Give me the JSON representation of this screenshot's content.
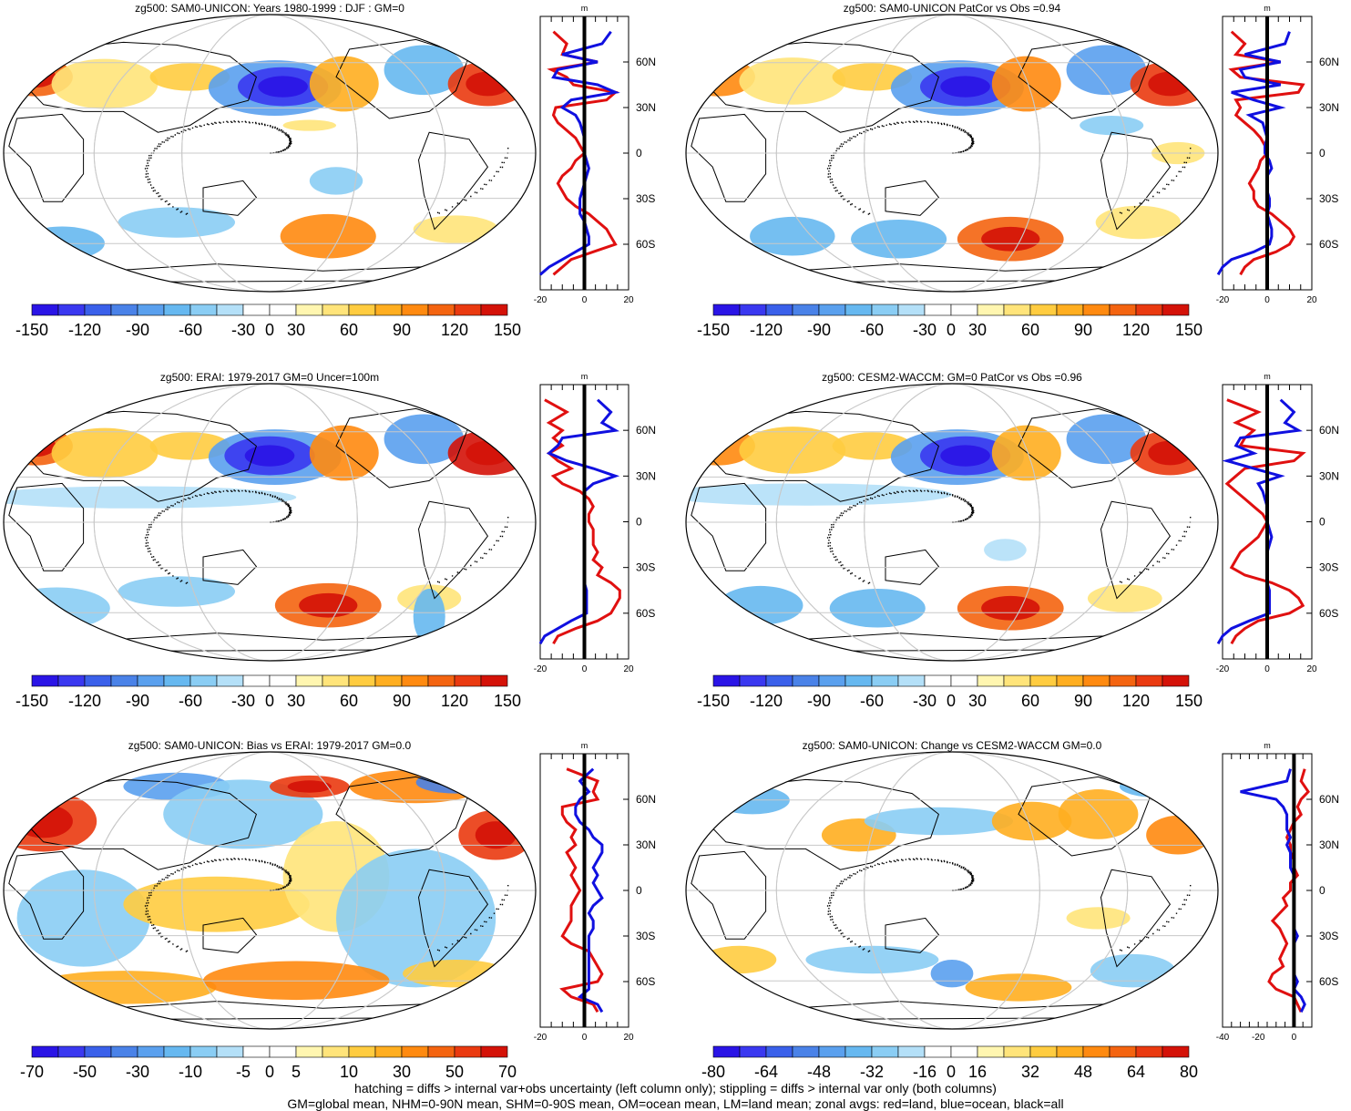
{
  "figure": {
    "caption_lines": [
      "hatching = diffs > internal var+obs uncertainty (left column only); stippling = diffs > internal var only (both columns)",
      "GM=global mean, NHM=0-90N mean, SHM=0-90S mean, OM=ocean mean, LM=land mean; zonal avgs: red=land, blue=ocean, black=all"
    ]
  },
  "colors": {
    "land": "#e01010",
    "ocean": "#1010e0",
    "all": "#000000",
    "grid": "#c8c8c8",
    "palette": [
      "#2a14e6",
      "#3a38f0",
      "#3a60ea",
      "#4a82e8",
      "#5aa0ee",
      "#66b8f0",
      "#8acdf4",
      "#b4e0f8",
      "#ffffff",
      "#ffffff",
      "#fff6b0",
      "#ffe47a",
      "#ffcc40",
      "#ffae20",
      "#ff8a10",
      "#f46410",
      "#ea3a10",
      "#d41208"
    ]
  },
  "chart_data": [
    {
      "type": "heatmap",
      "title": "zg500: SAM0-UNICON: Years 1980-1999 : DJF : GM=0",
      "colorbar_ticks": [
        "-150",
        "-120",
        "-90",
        "-60",
        "-30",
        "0",
        "30",
        "60",
        "90",
        "120",
        "150"
      ],
      "zonal_profile": {
        "x_ticks": [
          "-20",
          "0",
          "20"
        ],
        "xlim": [
          -20,
          20
        ],
        "y_ticks": [
          "60N",
          "30N",
          "0",
          "30S",
          "60S"
        ],
        "ylim": [
          -90,
          90
        ],
        "units": "m",
        "lat": [
          80,
          72,
          65,
          60,
          55,
          50,
          45,
          40,
          35,
          30,
          25,
          20,
          15,
          10,
          5,
          0,
          -5,
          -10,
          -15,
          -20,
          -25,
          -30,
          -35,
          -40,
          -45,
          -50,
          -55,
          -60,
          -65,
          -70,
          -75,
          -80
        ],
        "land": [
          -14,
          -8,
          -10,
          6,
          -15,
          -8,
          -5,
          14,
          10,
          -13,
          -14,
          -12,
          -8,
          -4,
          -2,
          0,
          -4,
          -6,
          -10,
          -12,
          -10,
          -8,
          -4,
          2,
          6,
          10,
          12,
          14,
          4,
          -6,
          -10,
          -14
        ],
        "ocean": [
          12,
          8,
          -10,
          6,
          -12,
          -14,
          6,
          14,
          -6,
          -10,
          -4,
          -2,
          -1,
          0,
          0,
          0,
          1,
          2,
          1,
          0,
          -1,
          -2,
          -2,
          -2,
          0,
          1,
          2,
          2,
          -4,
          -10,
          -16,
          -20
        ]
      }
    },
    {
      "type": "heatmap",
      "title": "zg500: SAM0-UNICON PatCor vs Obs =0.94",
      "colorbar_ticks": [
        "-150",
        "-120",
        "-90",
        "-60",
        "-30",
        "0",
        "30",
        "60",
        "90",
        "120",
        "150"
      ],
      "zonal_profile": {
        "x_ticks": [
          "-20",
          "0",
          "20"
        ],
        "xlim": [
          -20,
          20
        ],
        "y_ticks": [
          "60N",
          "30N",
          "0",
          "30S",
          "60S"
        ],
        "ylim": [
          -90,
          90
        ],
        "units": "m",
        "lat": [
          80,
          72,
          65,
          60,
          55,
          50,
          45,
          40,
          35,
          30,
          25,
          20,
          15,
          10,
          5,
          0,
          -5,
          -10,
          -15,
          -20,
          -25,
          -30,
          -35,
          -40,
          -45,
          -50,
          -55,
          -60,
          -65,
          -70,
          -75,
          -80
        ],
        "land": [
          -16,
          -10,
          -14,
          6,
          -16,
          -12,
          16,
          14,
          -14,
          -12,
          -14,
          -10,
          -6,
          -3,
          -1,
          0,
          -3,
          -4,
          -6,
          -8,
          -6,
          -6,
          -4,
          2,
          6,
          10,
          12,
          10,
          4,
          -6,
          -10,
          -12
        ],
        "ocean": [
          10,
          8,
          -10,
          6,
          -12,
          -10,
          6,
          -16,
          -6,
          6,
          -8,
          -2,
          -1,
          0,
          -1,
          -1,
          1,
          2,
          0,
          0,
          0,
          1,
          1,
          0,
          1,
          2,
          2,
          1,
          -6,
          -16,
          -20,
          -22
        ]
      }
    },
    {
      "type": "heatmap",
      "title": "zg500: ERAI: 1979-2017 GM=0 Uncer=100m",
      "colorbar_ticks": [
        "-150",
        "-120",
        "-90",
        "-60",
        "-30",
        "0",
        "30",
        "60",
        "90",
        "120",
        "150"
      ],
      "zonal_profile": {
        "x_ticks": [
          "-20",
          "0",
          "20"
        ],
        "xlim": [
          -20,
          20
        ],
        "y_ticks": [
          "60N",
          "30N",
          "0",
          "30S",
          "60S"
        ],
        "ylim": [
          -90,
          90
        ],
        "units": "m",
        "lat": [
          80,
          72,
          65,
          60,
          55,
          50,
          45,
          40,
          35,
          30,
          25,
          20,
          15,
          10,
          5,
          0,
          -5,
          -10,
          -15,
          -20,
          -25,
          -30,
          -35,
          -40,
          -45,
          -50,
          -55,
          -60,
          -65,
          -70,
          -75,
          -80
        ],
        "land": [
          -18,
          -8,
          -16,
          -10,
          -14,
          -10,
          -16,
          -12,
          -6,
          -14,
          -10,
          -2,
          2,
          4,
          2,
          2,
          4,
          4,
          4,
          6,
          4,
          8,
          6,
          12,
          16,
          16,
          14,
          12,
          6,
          -4,
          -12,
          -14
        ],
        "ocean": [
          6,
          12,
          8,
          14,
          -10,
          -12,
          -16,
          -8,
          4,
          14,
          4,
          0,
          0,
          0,
          0,
          0,
          0,
          0,
          0,
          0,
          0,
          0,
          0,
          0,
          1,
          1,
          1,
          1,
          -6,
          -12,
          -18,
          -20
        ]
      }
    },
    {
      "type": "heatmap",
      "title": "zg500: CESM2-WACCM: GM=0 PatCor vs Obs =0.96",
      "colorbar_ticks": [
        "-150",
        "-120",
        "-90",
        "-60",
        "-30",
        "0",
        "30",
        "60",
        "90",
        "120",
        "150"
      ],
      "zonal_profile": {
        "x_ticks": [
          "-20",
          "0",
          "20"
        ],
        "xlim": [
          -20,
          20
        ],
        "y_ticks": [
          "60N",
          "30N",
          "0",
          "30S",
          "60S"
        ],
        "ylim": [
          -90,
          90
        ],
        "units": "m",
        "lat": [
          80,
          72,
          65,
          60,
          55,
          50,
          45,
          40,
          35,
          30,
          25,
          20,
          15,
          10,
          5,
          0,
          -5,
          -10,
          -15,
          -20,
          -25,
          -30,
          -35,
          -40,
          -45,
          -50,
          -55,
          -60,
          -65,
          -70,
          -75,
          -80
        ],
        "land": [
          -18,
          -4,
          -14,
          -6,
          -10,
          -12,
          16,
          12,
          -10,
          -14,
          -18,
          -14,
          -10,
          -6,
          -2,
          0,
          -2,
          -4,
          -8,
          -12,
          -14,
          -16,
          -10,
          2,
          10,
          14,
          16,
          10,
          -4,
          -10,
          -14,
          -16
        ],
        "ocean": [
          6,
          12,
          8,
          14,
          -12,
          -14,
          -6,
          -18,
          -6,
          6,
          -4,
          -2,
          -1,
          0,
          0,
          0,
          1,
          2,
          1,
          0,
          0,
          0,
          0,
          0,
          1,
          1,
          1,
          1,
          -8,
          -16,
          -20,
          -22
        ]
      }
    },
    {
      "type": "heatmap",
      "title": "zg500: SAM0-UNICON: Bias vs ERAI: 1979-2017 GM=0.0",
      "colorbar_ticks": [
        "-70",
        "-50",
        "-30",
        "-10",
        "-5",
        "0",
        "5",
        "10",
        "30",
        "50",
        "70"
      ],
      "zonal_profile": {
        "x_ticks": [
          "-20",
          "0",
          "20"
        ],
        "xlim": [
          -20,
          20
        ],
        "y_ticks": [
          "60N",
          "30N",
          "0",
          "30S",
          "60S"
        ],
        "ylim": [
          -90,
          90
        ],
        "units": "m",
        "lat": [
          80,
          72,
          65,
          60,
          55,
          50,
          45,
          40,
          35,
          30,
          25,
          20,
          15,
          10,
          5,
          0,
          -5,
          -10,
          -15,
          -20,
          -25,
          -30,
          -35,
          -40,
          -45,
          -50,
          -55,
          -60,
          -65,
          -70,
          -75,
          -80
        ],
        "land": [
          -8,
          6,
          4,
          6,
          -10,
          -10,
          -8,
          -4,
          -6,
          -4,
          -8,
          -6,
          -4,
          -6,
          -4,
          -2,
          -4,
          -6,
          -6,
          -6,
          -8,
          -10,
          -6,
          2,
          4,
          6,
          8,
          6,
          -10,
          -6,
          4,
          6
        ],
        "ocean": [
          4,
          -2,
          2,
          -2,
          -4,
          -4,
          -2,
          2,
          4,
          8,
          8,
          6,
          4,
          6,
          4,
          6,
          8,
          4,
          2,
          4,
          4,
          2,
          2,
          2,
          2,
          2,
          2,
          2,
          2,
          -2,
          6,
          8
        ]
      }
    },
    {
      "type": "heatmap",
      "title": "zg500: SAM0-UNICON: Change vs CESM2-WACCM GM=0.0",
      "colorbar_ticks": [
        "-80",
        "-64",
        "-48",
        "-32",
        "-16",
        "0",
        "16",
        "32",
        "48",
        "64",
        "80"
      ],
      "zonal_profile": {
        "x_ticks": [
          "-40",
          "-20",
          "0"
        ],
        "xlim": [
          -40,
          10
        ],
        "y_ticks": [
          "60N",
          "30N",
          "0",
          "30S",
          "60S"
        ],
        "ylim": [
          -90,
          90
        ],
        "units": "m",
        "lat": [
          80,
          72,
          65,
          60,
          55,
          50,
          45,
          40,
          35,
          30,
          25,
          20,
          15,
          10,
          5,
          0,
          -5,
          -10,
          -15,
          -20,
          -25,
          -30,
          -35,
          -40,
          -45,
          -50,
          -55,
          -60,
          -65,
          -70,
          -75,
          -80
        ],
        "land": [
          6,
          4,
          8,
          4,
          2,
          4,
          0,
          -2,
          -4,
          -2,
          -2,
          0,
          0,
          2,
          -2,
          -2,
          -6,
          -4,
          -8,
          -12,
          -8,
          -6,
          -4,
          -6,
          -8,
          -6,
          -12,
          -14,
          -10,
          0,
          2,
          4
        ],
        "ocean": [
          -2,
          -4,
          -30,
          -10,
          -6,
          -4,
          -4,
          -4,
          -2,
          -4,
          -2,
          -2,
          -2,
          0,
          0,
          0,
          0,
          0,
          0,
          0,
          0,
          2,
          0,
          0,
          0,
          0,
          0,
          2,
          0,
          4,
          6,
          4
        ]
      }
    }
  ]
}
